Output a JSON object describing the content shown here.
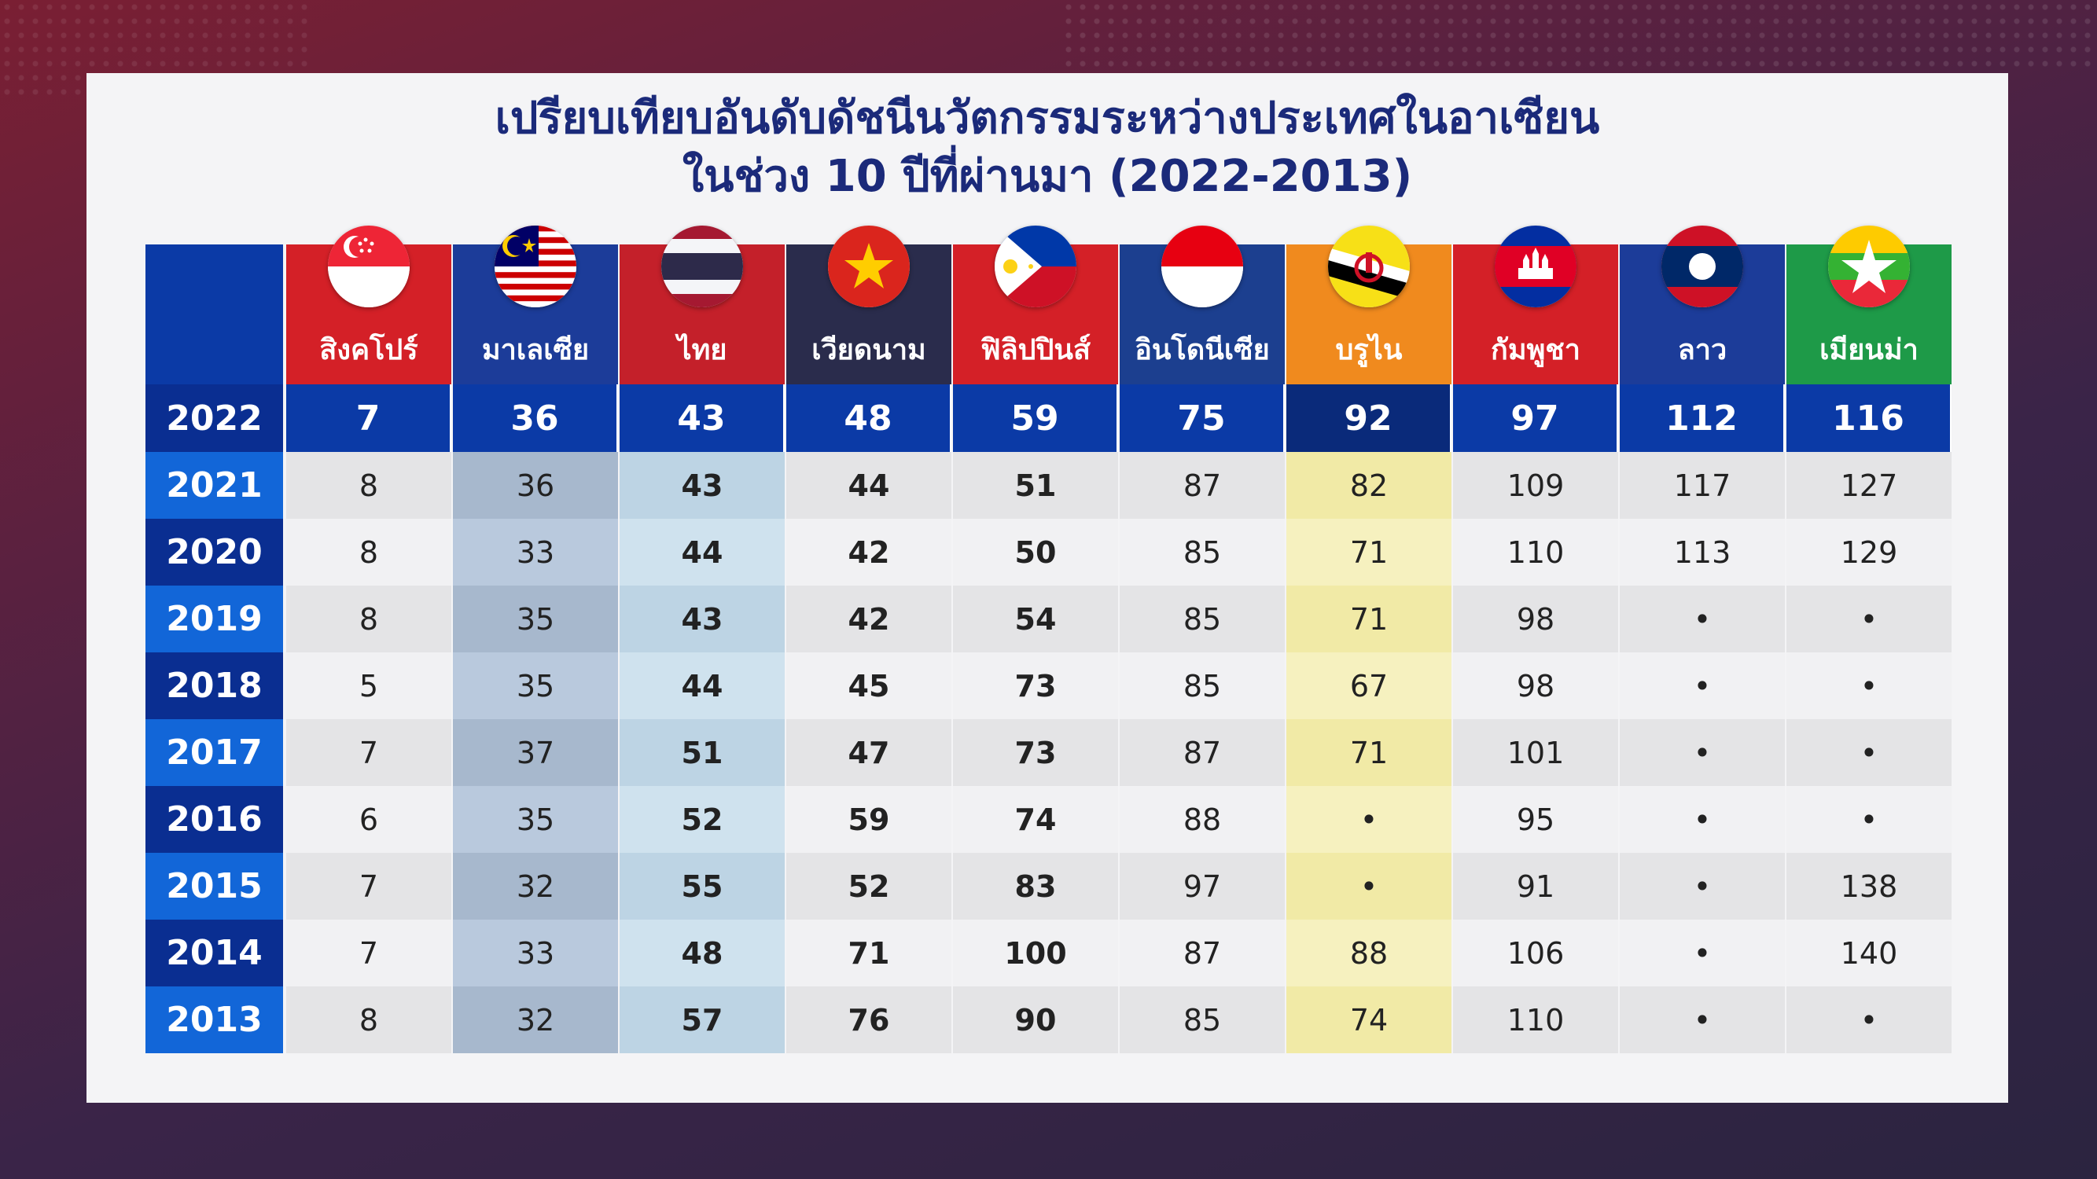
{
  "colors": {
    "title": "#1b2a7a",
    "header_blue": "#0b3aa6",
    "year_dark": "#0a2e91",
    "year_light": "#1266d8",
    "brunei_highlight": "#f3efb6",
    "malaysia_col": "#b4c5dc",
    "thailand_col": "#c8dcea"
  },
  "chart_data": {
    "type": "table",
    "title_line1": "เปรียบเทียบอันดับดัชนีนวัตกรรมระหว่างประเทศในอาเซียน",
    "title_line2": "ในช่วง 10 ปีที่ผ่านมา (2022-2013)",
    "columns": [
      {
        "name": "สิงคโปร์",
        "flag": "singapore-flag",
        "header_color": "#d42027"
      },
      {
        "name": "มาเลเซีย",
        "flag": "malaysia-flag",
        "header_color": "#1c3c99"
      },
      {
        "name": "ไทย",
        "flag": "thailand-flag",
        "header_color": "#c4202a"
      },
      {
        "name": "เวียดนาม",
        "flag": "vietnam-flag",
        "header_color": "#2a2c4c"
      },
      {
        "name": "ฟิลิปปินส์",
        "flag": "philippines-flag",
        "header_color": "#d42027"
      },
      {
        "name": "อินโดนีเซีย",
        "flag": "indonesia-flag",
        "header_color": "#1c3f8f"
      },
      {
        "name": "บรูไน",
        "flag": "brunei-flag",
        "header_color": "#f08a1e"
      },
      {
        "name": "กัมพูชา",
        "flag": "cambodia-flag",
        "header_color": "#d42027"
      },
      {
        "name": "ลาว",
        "flag": "laos-flag",
        "header_color": "#1c3c99"
      },
      {
        "name": "เมียนม่า",
        "flag": "myanmar-flag",
        "header_color": "#1e9a48"
      }
    ],
    "rows": [
      {
        "year": "2022",
        "values": [
          "7",
          "36",
          "43",
          "48",
          "59",
          "75",
          "92",
          "97",
          "112",
          "116"
        ]
      },
      {
        "year": "2021",
        "values": [
          "8",
          "36",
          "43",
          "44",
          "51",
          "87",
          "82",
          "109",
          "117",
          "127"
        ]
      },
      {
        "year": "2020",
        "values": [
          "8",
          "33",
          "44",
          "42",
          "50",
          "85",
          "71",
          "110",
          "113",
          "129"
        ]
      },
      {
        "year": "2019",
        "values": [
          "8",
          "35",
          "43",
          "42",
          "54",
          "85",
          "71",
          "98",
          "•",
          "•"
        ]
      },
      {
        "year": "2018",
        "values": [
          "5",
          "35",
          "44",
          "45",
          "73",
          "85",
          "67",
          "98",
          "•",
          "•"
        ]
      },
      {
        "year": "2017",
        "values": [
          "7",
          "37",
          "51",
          "47",
          "73",
          "87",
          "71",
          "101",
          "•",
          "•"
        ]
      },
      {
        "year": "2016",
        "values": [
          "6",
          "35",
          "52",
          "59",
          "74",
          "88",
          "•",
          "95",
          "•",
          "•"
        ]
      },
      {
        "year": "2015",
        "values": [
          "7",
          "32",
          "55",
          "52",
          "83",
          "97",
          "•",
          "91",
          "•",
          "138"
        ]
      },
      {
        "year": "2014",
        "values": [
          "7",
          "33",
          "48",
          "71",
          "100",
          "87",
          "88",
          "106",
          "•",
          "140"
        ]
      },
      {
        "year": "2013",
        "values": [
          "8",
          "32",
          "57",
          "76",
          "90",
          "85",
          "74",
          "110",
          "•",
          "•"
        ]
      }
    ]
  }
}
